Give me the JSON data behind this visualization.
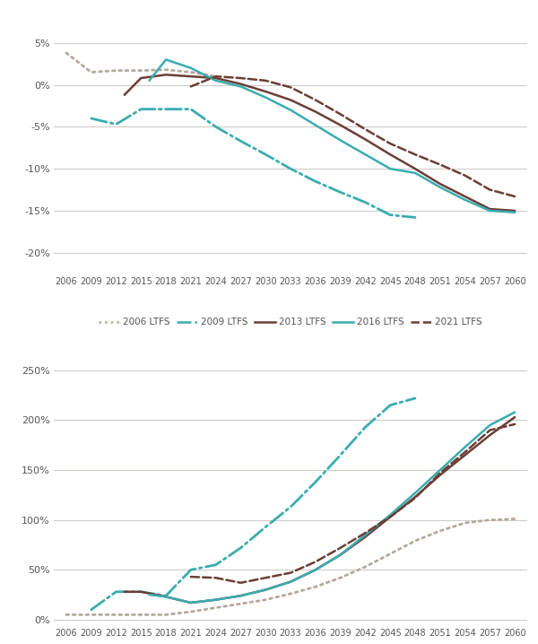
{
  "top_chart": {
    "series": {
      "2006 LTFS": {
        "x": [
          2006,
          2009,
          2012,
          2015,
          2018,
          2021,
          2024
        ],
        "y": [
          0.038,
          0.015,
          0.017,
          0.017,
          0.018,
          0.015,
          0.01
        ],
        "color": "#b3a99c",
        "linestyle": "dotted",
        "linewidth": 2.0
      },
      "2009 LTFS": {
        "x": [
          2009,
          2012,
          2015,
          2018,
          2021,
          2024,
          2027,
          2030,
          2033,
          2036,
          2039,
          2042,
          2045,
          2048
        ],
        "y": [
          -0.04,
          -0.047,
          -0.029,
          -0.029,
          -0.029,
          -0.05,
          -0.067,
          -0.083,
          -0.1,
          -0.115,
          -0.128,
          -0.14,
          -0.155,
          -0.158
        ],
        "color": "#3aacb0",
        "linestyle": "dashdot",
        "linewidth": 2.0
      },
      "2013 LTFS": {
        "x": [
          2013,
          2015,
          2018,
          2021,
          2024,
          2027,
          2030,
          2033,
          2036,
          2039,
          2042,
          2045,
          2048,
          2051,
          2054,
          2057,
          2060
        ],
        "y": [
          -0.012,
          0.008,
          0.012,
          0.01,
          0.008,
          0.001,
          -0.008,
          -0.018,
          -0.032,
          -0.048,
          -0.065,
          -0.083,
          -0.1,
          -0.118,
          -0.133,
          -0.148,
          -0.15
        ],
        "color": "#6b3e36",
        "linestyle": "solid",
        "linewidth": 1.8
      },
      "2016 LTFS": {
        "x": [
          2016,
          2018,
          2021,
          2024,
          2027,
          2030,
          2033,
          2036,
          2039,
          2042,
          2045,
          2048,
          2051,
          2054,
          2057,
          2060
        ],
        "y": [
          0.005,
          0.03,
          0.02,
          0.005,
          -0.002,
          -0.015,
          -0.03,
          -0.048,
          -0.066,
          -0.083,
          -0.1,
          -0.105,
          -0.122,
          -0.137,
          -0.15,
          -0.152
        ],
        "color": "#3aacb0",
        "linestyle": "solid",
        "linewidth": 1.8
      },
      "2021 LTFS": {
        "x": [
          2021,
          2024,
          2027,
          2030,
          2033,
          2036,
          2039,
          2042,
          2045,
          2048,
          2051,
          2054,
          2057,
          2060
        ],
        "y": [
          -0.002,
          0.01,
          0.008,
          0.005,
          -0.003,
          -0.018,
          -0.035,
          -0.053,
          -0.07,
          -0.083,
          -0.095,
          -0.108,
          -0.125,
          -0.133
        ],
        "color": "#6b3e36",
        "linestyle": "dashed",
        "linewidth": 1.8
      }
    }
  },
  "bottom_chart": {
    "series": {
      "2006 LTFS": {
        "x": [
          2006,
          2009,
          2012,
          2015,
          2018,
          2021,
          2024,
          2027,
          2030,
          2033,
          2036,
          2039,
          2042,
          2045,
          2048,
          2051,
          2054,
          2057,
          2060
        ],
        "y": [
          0.05,
          0.05,
          0.05,
          0.05,
          0.05,
          0.08,
          0.12,
          0.16,
          0.2,
          0.26,
          0.33,
          0.42,
          0.53,
          0.66,
          0.79,
          0.89,
          0.97,
          1.0,
          1.01
        ],
        "color": "#b3a99c",
        "linestyle": "dotted",
        "linewidth": 2.0
      },
      "2009 LTFS": {
        "x": [
          2009,
          2012,
          2015,
          2018,
          2021,
          2024,
          2027,
          2030,
          2033,
          2036,
          2039,
          2042,
          2045,
          2048
        ],
        "y": [
          0.1,
          0.28,
          0.28,
          0.24,
          0.5,
          0.55,
          0.72,
          0.93,
          1.13,
          1.38,
          1.65,
          1.93,
          2.15,
          2.22
        ],
        "color": "#3aacb0",
        "linestyle": "dashdot",
        "linewidth": 2.0
      },
      "2013 LTFS": {
        "x": [
          2013,
          2015,
          2018,
          2021,
          2024,
          2027,
          2030,
          2033,
          2036,
          2039,
          2042,
          2045,
          2048,
          2051,
          2054,
          2057,
          2060
        ],
        "y": [
          0.28,
          0.28,
          0.23,
          0.17,
          0.2,
          0.24,
          0.3,
          0.38,
          0.5,
          0.65,
          0.83,
          1.03,
          1.23,
          1.45,
          1.65,
          1.85,
          2.03
        ],
        "color": "#6b3e36",
        "linestyle": "solid",
        "linewidth": 1.8
      },
      "2016 LTFS": {
        "x": [
          2016,
          2018,
          2021,
          2024,
          2027,
          2030,
          2033,
          2036,
          2039,
          2042,
          2045,
          2048,
          2051,
          2054,
          2057,
          2060
        ],
        "y": [
          0.25,
          0.23,
          0.17,
          0.2,
          0.24,
          0.3,
          0.38,
          0.5,
          0.65,
          0.85,
          1.05,
          1.27,
          1.5,
          1.73,
          1.95,
          2.08
        ],
        "color": "#3aacb0",
        "linestyle": "solid",
        "linewidth": 1.8
      },
      "2021 LTFS": {
        "x": [
          2021,
          2024,
          2027,
          2030,
          2033,
          2036,
          2039,
          2042,
          2045,
          2048,
          2051,
          2054,
          2057,
          2060
        ],
        "y": [
          0.43,
          0.42,
          0.37,
          0.42,
          0.47,
          0.58,
          0.72,
          0.87,
          1.03,
          1.22,
          1.47,
          1.68,
          1.9,
          1.96
        ],
        "color": "#6b3e36",
        "linestyle": "dashed",
        "linewidth": 1.8
      }
    }
  },
  "xticks": [
    2006,
    2009,
    2012,
    2015,
    2018,
    2021,
    2024,
    2027,
    2030,
    2033,
    2036,
    2039,
    2042,
    2045,
    2048,
    2051,
    2054,
    2057,
    2060
  ],
  "legend_entries": [
    "2006 LTFS",
    "2009 LTFS",
    "2013 LTFS",
    "2016 LTFS",
    "2021 LTFS"
  ],
  "legend_colors": [
    "#b3a99c",
    "#3aacb0",
    "#6b3e36",
    "#3aacb0",
    "#6b3e36"
  ],
  "legend_linestyles": [
    "dotted",
    "dashdot",
    "solid",
    "solid",
    "dashed"
  ],
  "background_color": "#ffffff",
  "grid_color": "#d0ccc8"
}
